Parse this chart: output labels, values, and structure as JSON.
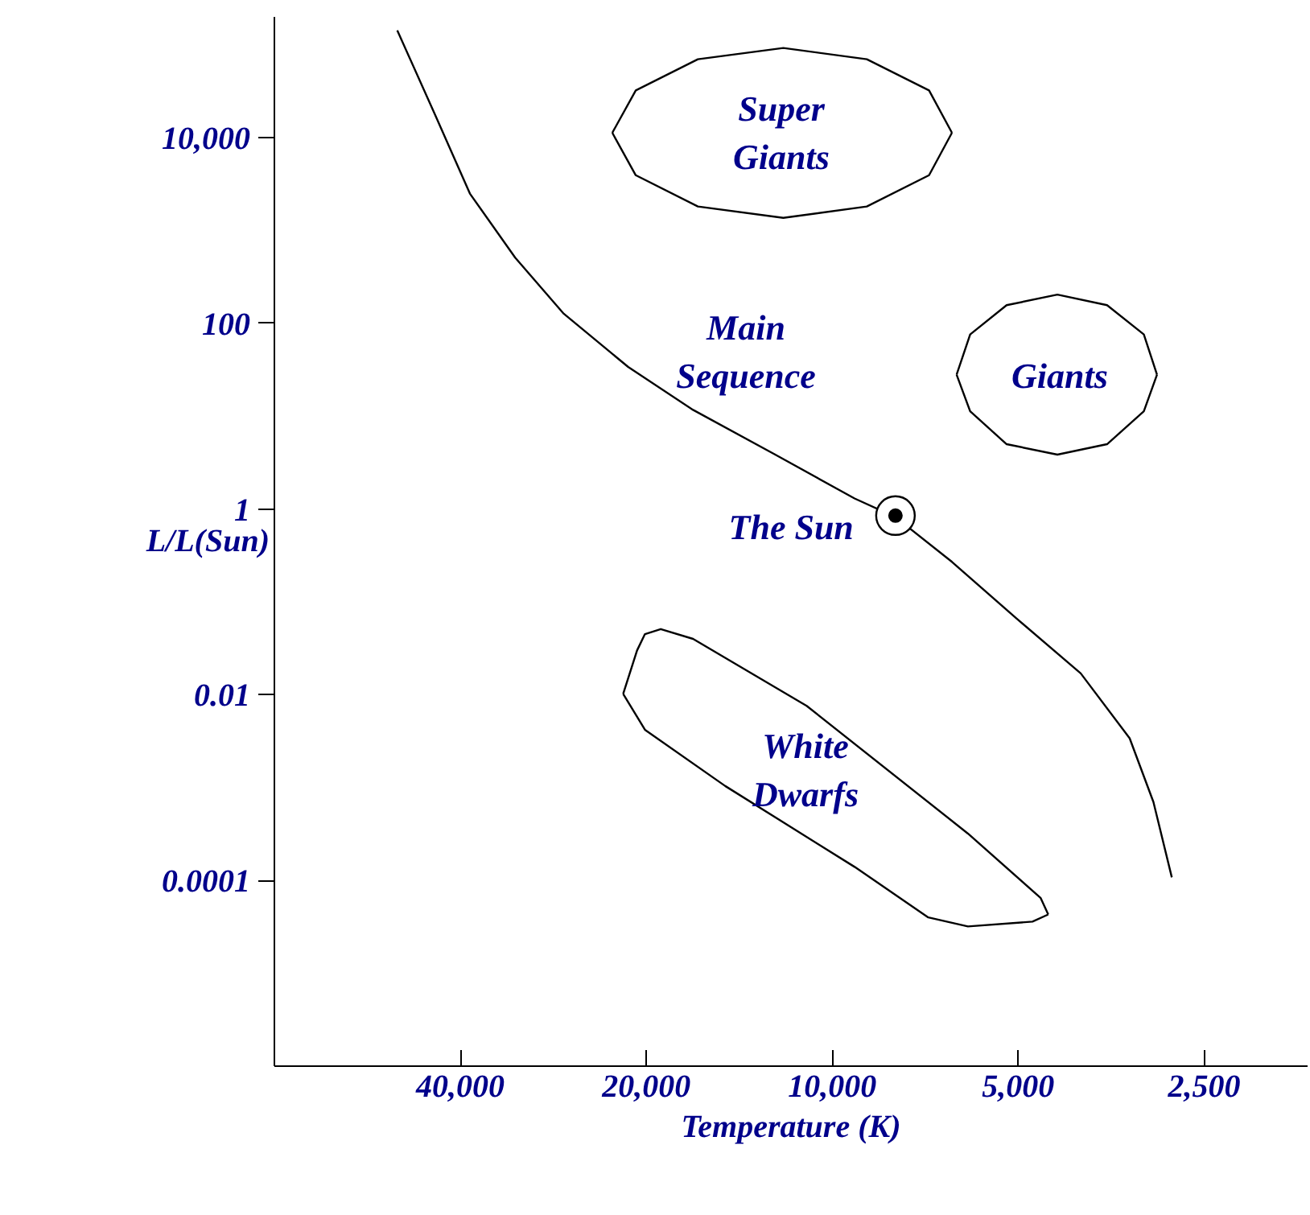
{
  "chart_data": {
    "type": "line",
    "xlabel": "Temperature (K)",
    "ylabel": "L/L(Sun)",
    "log": "xy",
    "grid": false,
    "xlim": [
      80000,
      1700
    ],
    "ylim": [
      1e-06,
      200000
    ],
    "xticks": [
      {
        "value": 40000,
        "label": "40,000"
      },
      {
        "value": 20000,
        "label": "20,000"
      },
      {
        "value": 10000,
        "label": "10,000"
      },
      {
        "value": 5000,
        "label": "5,000"
      },
      {
        "value": 2500,
        "label": "2,500"
      }
    ],
    "yticks": [
      {
        "value": 10000,
        "label": "10,000"
      },
      100,
      1,
      0.01,
      0.0001
    ],
    "series": [
      {
        "color": "#000000",
        "x": [
          50600,
          44000,
          38600,
          32600,
          27200,
          21400,
          16800,
          12400,
          9200,
          7900,
          6400,
          5040,
          3960,
          3300,
          3020,
          2820
        ],
        "values": [
          143000,
          18000,
          2500,
          510,
          127,
          34,
          11.7,
          3.9,
          1.3,
          0.82,
          0.27,
          0.067,
          0.017,
          0.0034,
          0.0007,
          0.000108
        ]
      },
      {
        "color": "#000000",
        "x": [
          22700,
          20800,
          16500,
          12000,
          8790,
          6970,
          6400
        ],
        "values": [
          11300,
          32300,
          70000,
          92500,
          70000,
          32300,
          11300
        ]
      },
      {
        "color": "#000000",
        "x": [
          22700,
          20800,
          16500,
          12000,
          8790,
          6970,
          6400
        ],
        "values": [
          11300,
          3940,
          1815,
          1370,
          1815,
          3940,
          11300
        ]
      },
      {
        "color": "#000000",
        "x": [
          6290,
          5980,
          5220,
          4320,
          3590,
          3130,
          2980
        ],
        "values": [
          28,
          76,
          157,
          204,
          157,
          76,
          28
        ]
      },
      {
        "color": "#000000",
        "x": [
          6290,
          5980,
          5220,
          4320,
          3590,
          3130,
          2980
        ],
        "values": [
          28,
          11.3,
          5.0,
          3.86,
          5.0,
          11.3,
          28
        ]
      },
      {
        "color": "#000000",
        "x": [
          21800,
          20700,
          20100,
          18950,
          16800,
          11000,
          6030,
          4600,
          4470
        ],
        "values": [
          0.0102,
          0.03,
          0.045,
          0.051,
          0.04,
          0.0076,
          0.00032,
          6.5e-05,
          4.3e-05
        ]
      },
      {
        "color": "#000000",
        "x": [
          21800,
          20100,
          14900,
          9200,
          6990,
          6030,
          4740,
          4470
        ],
        "values": [
          0.0102,
          0.0042,
          0.00104,
          0.00014,
          4e-05,
          3.2e-05,
          3.6e-05,
          4.3e-05
        ]
      },
      {
        "type": "scatter",
        "marker": "circle",
        "color": "#000000",
        "x": [
          7900
        ],
        "values": [
          0.85
        ]
      }
    ],
    "annotations": [
      "Super\nGiants",
      "Main\nSequence",
      "Giants",
      {
        "text": "The Sun",
        "x": 7900,
        "y": 0.85
      },
      "White\nDwarfs"
    ]
  }
}
